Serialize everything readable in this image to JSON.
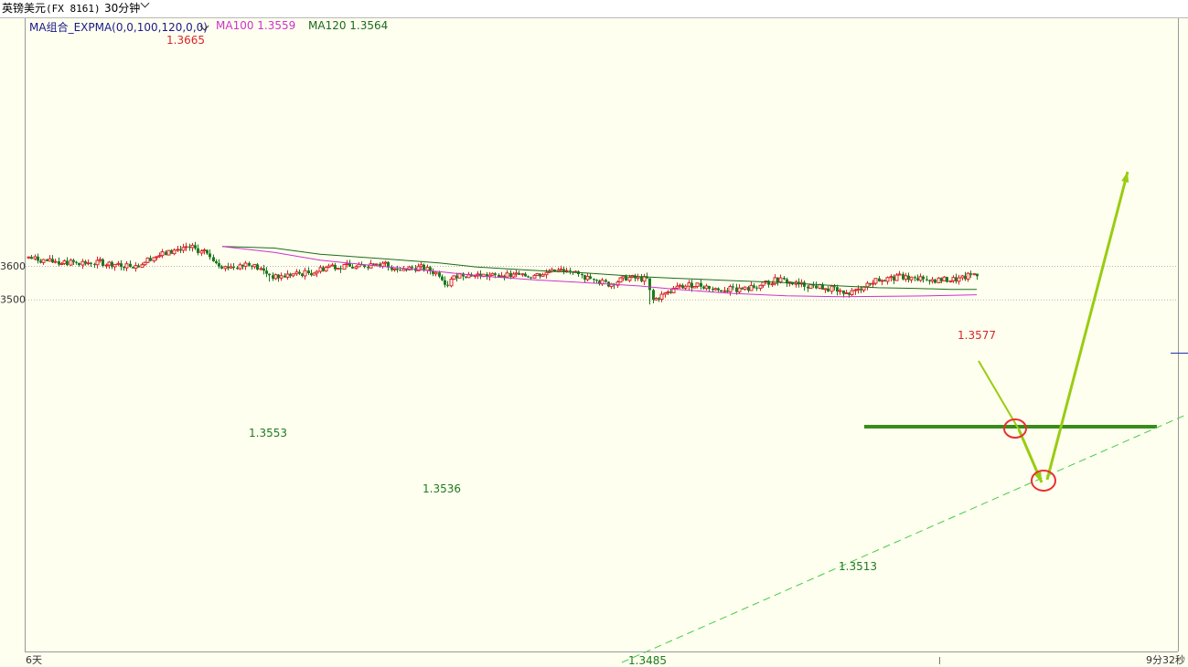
{
  "header": {
    "symbol": "英镑美元",
    "code": "(FX 8161)",
    "period": "30分钟"
  },
  "indicators": {
    "group_label": "MA组合_EXPMA(0,0,100,120,0,0)",
    "ma100_label": "MA100 1.3559",
    "ma120_label": "MA120 1.3564"
  },
  "footer": {
    "left_label": "6天",
    "right_label": "9分32秒"
  },
  "colors": {
    "background": "#fffff0",
    "up_candle": "#d8262b",
    "down_candle": "#1e7b1e",
    "ma100": "#cc33cc",
    "ma120": "#1a6b1a",
    "support_line": "#3a8c1a",
    "trend_line": "#44cc44",
    "forecast_arrow": "#99cc11",
    "marker_circle": "#e83030"
  },
  "chart_data": {
    "type": "candlestick",
    "y_ticks": [
      "3600",
      "3500"
    ],
    "y_tick_values": [
      1.36,
      1.35
    ],
    "annotations": [
      {
        "text": "1.3665",
        "value": 1.3665,
        "kind": "high"
      },
      {
        "text": "1.3553",
        "value": 1.3553,
        "kind": "low"
      },
      {
        "text": "1.3536",
        "value": 1.3536,
        "kind": "low"
      },
      {
        "text": "1.3485",
        "value": 1.3485,
        "kind": "low"
      },
      {
        "text": "1.3513",
        "value": 1.3513,
        "kind": "low"
      },
      {
        "text": "1.3577",
        "value": 1.3577,
        "kind": "high"
      }
    ],
    "series": [
      {
        "name": "MA100",
        "last": 1.3559
      },
      {
        "name": "MA120",
        "last": 1.3564
      }
    ],
    "support_level": 1.3553
  }
}
